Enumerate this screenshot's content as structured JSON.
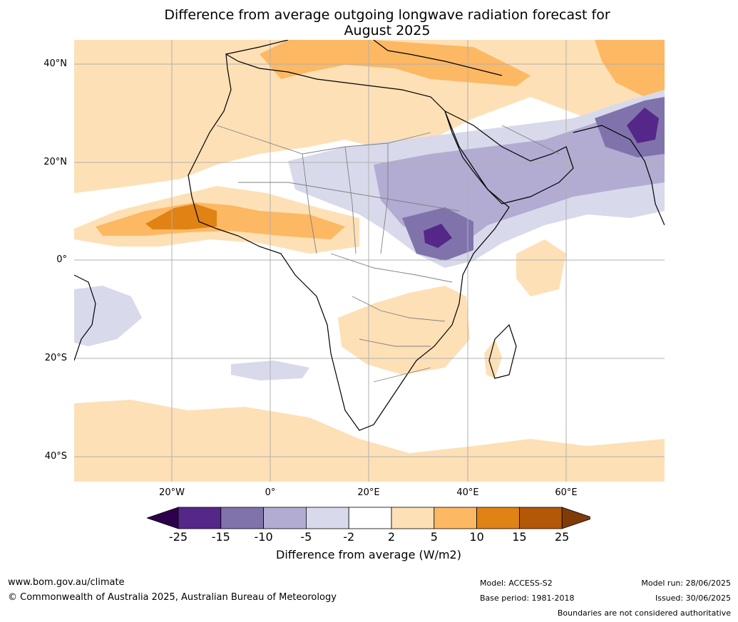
{
  "title": {
    "line1": "Difference from average outgoing longwave radiation forecast for",
    "line2": "August 2025"
  },
  "map": {
    "lat_labels": [
      "40°N",
      "20°N",
      "0°",
      "20°S",
      "40°S"
    ],
    "lon_labels": [
      "20°W",
      "0°",
      "20°E",
      "40°E",
      "60°E"
    ]
  },
  "colorbar": {
    "ticks": [
      "-25",
      "-15",
      "-10",
      "-5",
      "-2",
      "2",
      "5",
      "10",
      "15",
      "25"
    ],
    "colors": [
      "#2d004b",
      "#542788",
      "#8073ac",
      "#b2abd2",
      "#d8daeb",
      "#ffffff",
      "#fee0b6",
      "#fdb863",
      "#e08214",
      "#b35806",
      "#7f3b08"
    ],
    "label": "Difference from average (W/m2)"
  },
  "footer": {
    "website": "www.bom.gov.au/climate",
    "copyright": "© Commonwealth of Australia 2025, Australian Bureau of Meteorology",
    "model": "Model: ACCESS-S2",
    "base_period": "Base period: 1981-2018",
    "model_run": "Model run: 28/06/2025",
    "issued": "Issued: 30/06/2025",
    "disclaimer": "Boundaries are not considered authoritative"
  }
}
